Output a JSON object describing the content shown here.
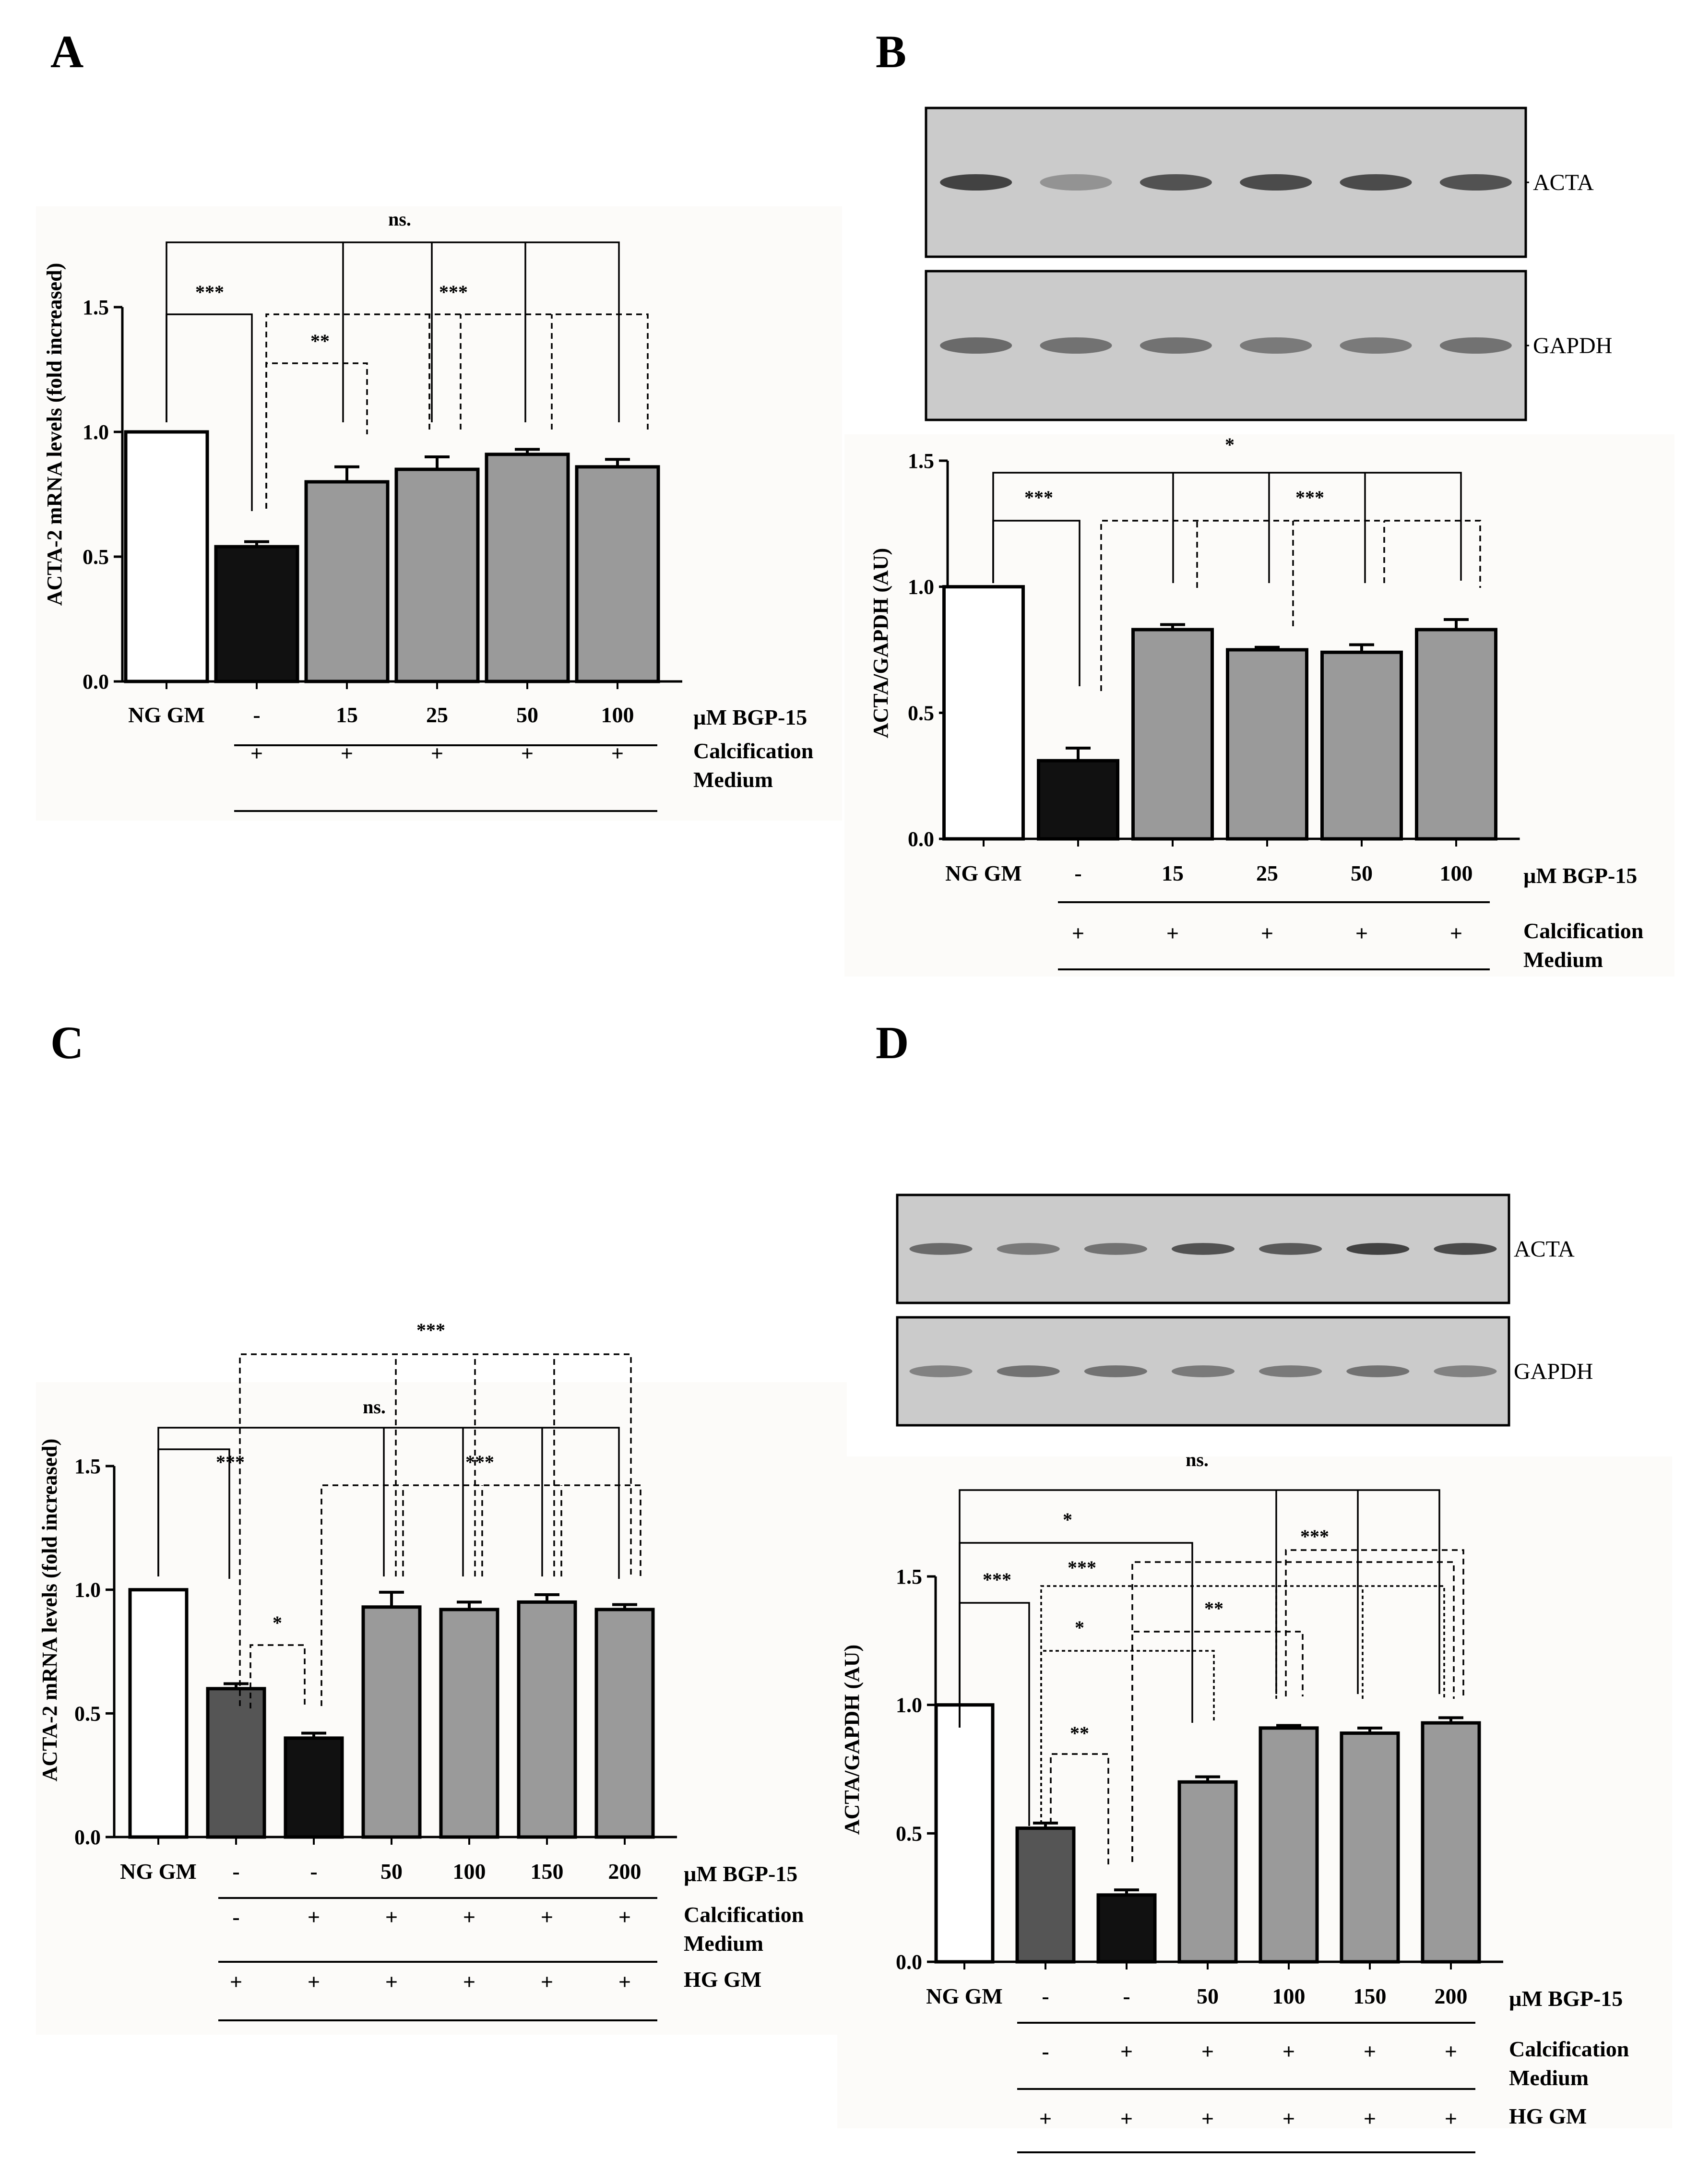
{
  "panels": [
    {
      "id": "A",
      "letter": "A",
      "blot": null,
      "chart_data": {
        "type": "bar",
        "ylabel": "ACTA-2 mRNA levels (fold increased)",
        "ylim": [
          0,
          1.5
        ],
        "yticks": [
          "0.0",
          "0.5",
          "1.0",
          "1.5"
        ],
        "categories": [
          "NG GM",
          "-",
          "15",
          "25",
          "50",
          "100"
        ],
        "values": [
          1.0,
          0.54,
          0.8,
          0.85,
          0.91,
          0.86
        ],
        "errors": [
          0,
          0.02,
          0.06,
          0.05,
          0.02,
          0.03
        ],
        "bar_colors": [
          "#ffffff",
          "#111111",
          "#9a9a9a",
          "#9a9a9a",
          "#9a9a9a",
          "#9a9a9a"
        ],
        "treatment_label": "µM BGP-15",
        "condition_rows": [
          {
            "label": "Calcification Medium",
            "values": [
              "",
              "+",
              "+",
              "+",
              "+",
              "+"
            ]
          }
        ],
        "significance": [
          {
            "label": "ns.",
            "style": "solid"
          },
          {
            "label": "***",
            "style": "solid"
          },
          {
            "label": "***",
            "style": "dashed"
          },
          {
            "label": "**",
            "style": "dashed"
          }
        ]
      }
    },
    {
      "id": "B",
      "letter": "B",
      "blot": {
        "bands": [
          "ACTA",
          "GAPDH"
        ]
      },
      "chart_data": {
        "type": "bar",
        "ylabel": "ACTA/GAPDH (AU)",
        "ylim": [
          0,
          1.5
        ],
        "yticks": [
          "0.0",
          "0.5",
          "1.0",
          "1.5"
        ],
        "categories": [
          "NG GM",
          "-",
          "15",
          "25",
          "50",
          "100"
        ],
        "values": [
          1.0,
          0.31,
          0.83,
          0.75,
          0.74,
          0.83
        ],
        "errors": [
          0,
          0.05,
          0.02,
          0.01,
          0.03,
          0.04
        ],
        "bar_colors": [
          "#ffffff",
          "#111111",
          "#9a9a9a",
          "#9a9a9a",
          "#9a9a9a",
          "#9a9a9a"
        ],
        "treatment_label": "µM BGP-15",
        "condition_rows": [
          {
            "label": "Calcification Medium",
            "values": [
              "",
              "+",
              "+",
              "+",
              "+",
              "+"
            ]
          }
        ],
        "significance": [
          {
            "label": "*",
            "style": "solid"
          },
          {
            "label": "***",
            "style": "solid"
          },
          {
            "label": "***",
            "style": "dashed"
          }
        ]
      }
    },
    {
      "id": "C",
      "letter": "C",
      "blot": null,
      "chart_data": {
        "type": "bar",
        "ylabel": "ACTA-2 mRNA levels (fold increased)",
        "ylim": [
          0,
          1.5
        ],
        "yticks": [
          "0.0",
          "0.5",
          "1.0",
          "1.5"
        ],
        "categories": [
          "NG GM",
          "-",
          "-",
          "50",
          "100",
          "150",
          "200"
        ],
        "values": [
          1.0,
          0.6,
          0.4,
          0.93,
          0.92,
          0.95,
          0.92
        ],
        "errors": [
          0,
          0.02,
          0.02,
          0.06,
          0.03,
          0.03,
          0.02
        ],
        "bar_colors": [
          "#ffffff",
          "#555555",
          "#111111",
          "#9a9a9a",
          "#9a9a9a",
          "#9a9a9a",
          "#9a9a9a"
        ],
        "treatment_label": "µM BGP-15",
        "condition_rows": [
          {
            "label": "Calcification Medium",
            "values": [
              "",
              "-",
              "+",
              "+",
              "+",
              "+",
              "+"
            ]
          },
          {
            "label": "HG GM",
            "values": [
              "",
              "+",
              "+",
              "+",
              "+",
              "+",
              "+"
            ]
          }
        ],
        "significance": [
          {
            "label": "***",
            "style": "dashed"
          },
          {
            "label": "ns.",
            "style": "solid"
          },
          {
            "label": "***",
            "style": "solid"
          },
          {
            "label": "***",
            "style": "dashed"
          },
          {
            "label": "*",
            "style": "dashed"
          }
        ]
      }
    },
    {
      "id": "D",
      "letter": "D",
      "blot": {
        "bands": [
          "ACTA",
          "GAPDH"
        ]
      },
      "chart_data": {
        "type": "bar",
        "ylabel": "ACTA/GAPDH (AU)",
        "ylim": [
          0,
          1.5
        ],
        "yticks": [
          "0.0",
          "0.5",
          "1.0",
          "1.5"
        ],
        "categories": [
          "NG GM",
          "-",
          "-",
          "50",
          "100",
          "150",
          "200"
        ],
        "values": [
          1.0,
          0.52,
          0.26,
          0.7,
          0.91,
          0.89,
          0.93
        ],
        "errors": [
          0,
          0.02,
          0.02,
          0.02,
          0.01,
          0.02,
          0.02
        ],
        "bar_colors": [
          "#ffffff",
          "#555555",
          "#111111",
          "#9a9a9a",
          "#9a9a9a",
          "#9a9a9a",
          "#9a9a9a"
        ],
        "treatment_label": "µM BGP-15",
        "condition_rows": [
          {
            "label": "Calcification Medium",
            "values": [
              "",
              "-",
              "+",
              "+",
              "+",
              "+",
              "+"
            ]
          },
          {
            "label": "HG GM",
            "values": [
              "",
              "+",
              "+",
              "+",
              "+",
              "+",
              "+"
            ]
          }
        ],
        "significance": [
          {
            "label": "ns.",
            "style": "solid"
          },
          {
            "label": "*",
            "style": "solid"
          },
          {
            "label": "***",
            "style": "solid"
          },
          {
            "label": "***",
            "style": "dashed"
          },
          {
            "label": "***",
            "style": "dashed"
          },
          {
            "label": "*",
            "style": "dashed"
          },
          {
            "label": "**",
            "style": "dashed"
          },
          {
            "label": "**",
            "style": "dashed"
          }
        ]
      }
    }
  ]
}
